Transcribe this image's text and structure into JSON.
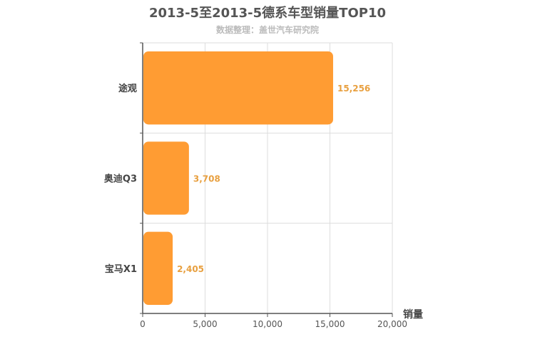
{
  "chart_data": {
    "type": "bar",
    "orientation": "horizontal",
    "title": "2013-5至2013-5德系车型销量TOP10",
    "subtitle": "数据整理：盖世汽车研究院",
    "categories": [
      "途观",
      "奥迪Q3",
      "宝马X1"
    ],
    "values": [
      15256,
      3708,
      2405
    ],
    "value_labels": [
      "15,256",
      "3,708",
      "2,405"
    ],
    "xlabel": "销量",
    "ylabel": "",
    "xlim": [
      0,
      20000
    ],
    "x_ticks": [
      0,
      5000,
      10000,
      15000,
      20000
    ],
    "x_tick_labels": [
      "0",
      "5,000",
      "10,000",
      "15,000",
      "20,000"
    ],
    "grid": true,
    "legend": "none",
    "colors": {
      "bar": "#ff9c33",
      "data_label": "#e8a040",
      "grid": "#dddddd",
      "axis": "#555555"
    }
  }
}
